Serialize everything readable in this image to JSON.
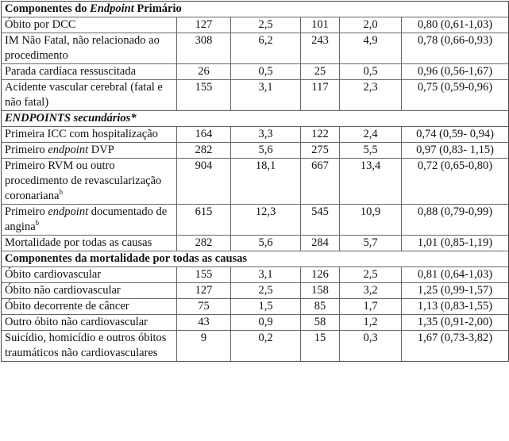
{
  "sections": [
    {
      "title_parts": [
        {
          "t": "Componentes do ",
          "i": false
        },
        {
          "t": "Endpoint",
          "i": true
        },
        {
          "t": " Primário",
          "i": false
        }
      ],
      "rows": [
        {
          "label": [
            {
              "t": "Óbito por DCC"
            }
          ],
          "values": [
            "127",
            "2,5",
            "101",
            "2,0",
            "0,80 (0,61-1,03)"
          ]
        },
        {
          "label": [
            {
              "t": "IM Não Fatal, não relacionado ao procedimento"
            }
          ],
          "values": [
            "308",
            "6,2",
            "243",
            "4,9",
            "0,78 (0,66-0,93)"
          ]
        },
        {
          "label": [
            {
              "t": "Parada cardíaca ressuscitada"
            }
          ],
          "values": [
            "26",
            "0,5",
            "25",
            "0,5",
            "0,96 (0,56-1,67)"
          ]
        },
        {
          "label": [
            {
              "t": "Acidente vascular cerebral (fatal e não fatal)"
            }
          ],
          "values": [
            "155",
            "3,1",
            "117",
            "2,3",
            "0,75 (0,59-0,96)"
          ]
        }
      ]
    },
    {
      "title_parts": [
        {
          "t": "ENDPOINTS",
          "i": true
        },
        {
          "t": " secundários*",
          "i": true
        }
      ],
      "rows": [
        {
          "label": [
            {
              "t": "Primeira ICC com hospitalização"
            }
          ],
          "values": [
            "164",
            "3,3",
            "122",
            "2,4",
            "0,74 (0,59- 0,94)"
          ]
        },
        {
          "label": [
            {
              "t": "Primeiro "
            },
            {
              "t": "endpoint",
              "i": true
            },
            {
              "t": " DVP"
            }
          ],
          "values": [
            "282",
            "5,6",
            "275",
            "5,5",
            "0,97 (0,83- 1,15)"
          ]
        },
        {
          "label": [
            {
              "t": "Primeiro RVM ou outro procedimento de revascularização coronariana"
            },
            {
              "t": "b",
              "sup": true
            }
          ],
          "values": [
            "904",
            "18,1",
            "667",
            "13,4",
            "0,72 (0,65-0,80)"
          ]
        },
        {
          "label": [
            {
              "t": "Primeiro "
            },
            {
              "t": "endpoint",
              "i": true
            },
            {
              "t": " documentado de angina"
            },
            {
              "t": "b",
              "sup": true
            }
          ],
          "values": [
            "615",
            "12,3",
            "545",
            "10,9",
            "0,88 (0,79-0,99)"
          ]
        },
        {
          "label": [
            {
              "t": "Mortalidade por todas as causas"
            }
          ],
          "values": [
            "282",
            "5,6",
            "284",
            "5,7",
            "1,01 (0,85-1,19)"
          ]
        }
      ]
    },
    {
      "title_parts": [
        {
          "t": "Componentes da mortalidade por todas as causas",
          "i": false
        }
      ],
      "rows": [
        {
          "label": [
            {
              "t": "Óbito cardiovascular"
            }
          ],
          "values": [
            "155",
            "3,1",
            "126",
            "2,5",
            "0,81 (0,64-1,03)"
          ]
        },
        {
          "label": [
            {
              "t": "Óbito não cardiovascular"
            }
          ],
          "values": [
            "127",
            "2,5",
            "158",
            "3,2",
            "1,25 (0,99-1,57)"
          ]
        },
        {
          "label": [
            {
              "t": "Óbito decorrente de câncer"
            }
          ],
          "values": [
            "75",
            "1,5",
            "85",
            "1,7",
            "1,13 (0,83-1,55)"
          ]
        },
        {
          "label": [
            {
              "t": "Outro óbito não cardiovascular"
            }
          ],
          "values": [
            "43",
            "0,9",
            "58",
            "1,2",
            "1,35 (0,91-2,00)"
          ]
        },
        {
          "label": [
            {
              "t": "Suicídio, homicídio e outros óbitos traumáticos não cardiovasculares"
            }
          ],
          "values": [
            "9",
            "0,2",
            "15",
            "0,3",
            "1,67 (0,73-3,82)"
          ]
        }
      ]
    }
  ]
}
